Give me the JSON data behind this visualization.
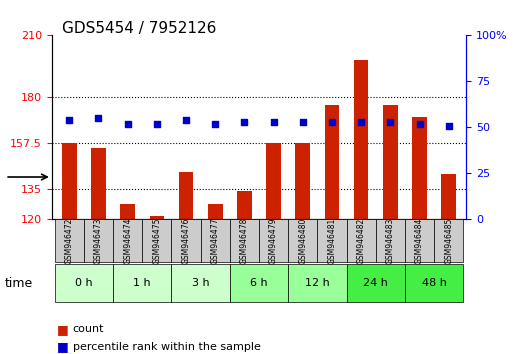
{
  "title": "GDS5454 / 7952126",
  "samples": [
    "GSM946472",
    "GSM946473",
    "GSM946474",
    "GSM946475",
    "GSM946476",
    "GSM946477",
    "GSM946478",
    "GSM946479",
    "GSM946480",
    "GSM946481",
    "GSM946482",
    "GSM946483",
    "GSM946484",
    "GSM946485"
  ],
  "count_values": [
    157.5,
    155.0,
    127.5,
    121.5,
    143.0,
    127.5,
    134.0,
    157.5,
    157.5,
    176.0,
    198.0,
    176.0,
    170.0,
    142.0
  ],
  "percentile_values": [
    54,
    55,
    52,
    52,
    54,
    52,
    53,
    53,
    53,
    53,
    53,
    53,
    52,
    51
  ],
  "time_groups": [
    {
      "label": "0 h",
      "samples": [
        "GSM946472",
        "GSM946473"
      ],
      "color": "#ccffcc"
    },
    {
      "label": "1 h",
      "samples": [
        "GSM946474",
        "GSM946475"
      ],
      "color": "#ccffcc"
    },
    {
      "label": "3 h",
      "samples": [
        "GSM946476",
        "GSM946477"
      ],
      "color": "#ccffcc"
    },
    {
      "label": "6 h",
      "samples": [
        "GSM946478",
        "GSM946479"
      ],
      "color": "#99ff99"
    },
    {
      "label": "12 h",
      "samples": [
        "GSM946480",
        "GSM946481"
      ],
      "color": "#99ff99"
    },
    {
      "label": "24 h",
      "samples": [
        "GSM946482",
        "GSM946483"
      ],
      "color": "#44ee44"
    },
    {
      "label": "48 h",
      "samples": [
        "GSM946484",
        "GSM946485"
      ],
      "color": "#44ee44"
    }
  ],
  "ylim_left": [
    120,
    210
  ],
  "ylim_right": [
    0,
    100
  ],
  "yticks_left": [
    120,
    135,
    157.5,
    180,
    210
  ],
  "yticks_right": [
    0,
    25,
    50,
    75,
    100
  ],
  "bar_color": "#cc2200",
  "dot_color": "#0000cc",
  "grid_values": [
    135,
    157.5,
    180
  ],
  "bar_bottom": 120,
  "background_color": "#ffffff",
  "plot_bg_color": "#ffffff",
  "legend_count_label": "count",
  "legend_pct_label": "percentile rank within the sample",
  "time_label": "time",
  "xlabel_area_color": "#dddddd",
  "sample_area_color": "#cccccc"
}
